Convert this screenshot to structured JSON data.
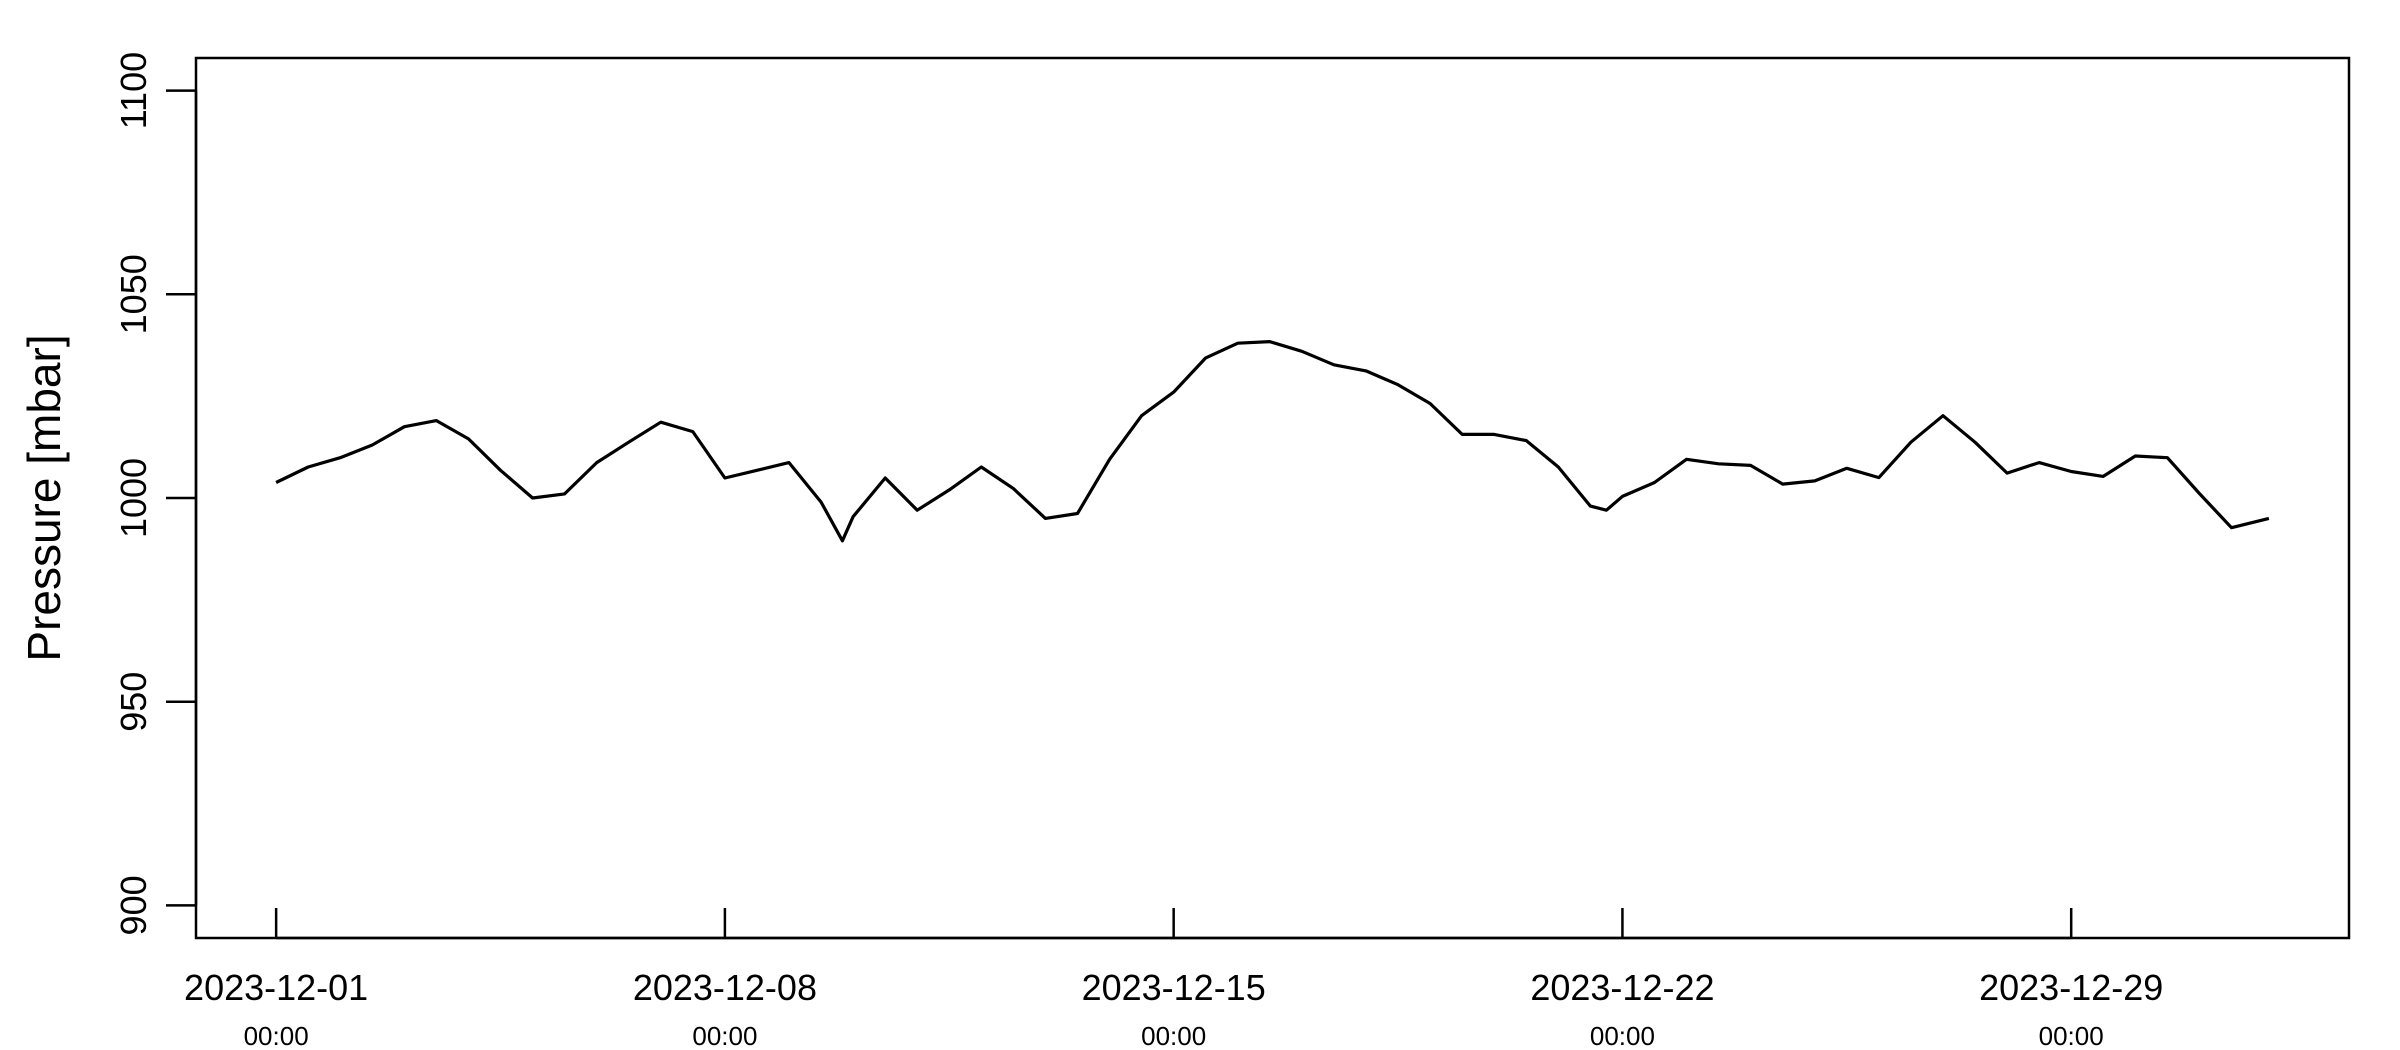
{
  "chart_data": {
    "type": "line",
    "y_label": "Pressure [mbar]",
    "color": "#000000",
    "xlim": [
      "2023-11-29 18:00",
      "2024-01-02 08:00"
    ],
    "ylim": [
      892,
      1108
    ],
    "yticks": [
      900,
      950,
      1000,
      1050,
      1100
    ],
    "xticks": [
      {
        "value": "2023-12-01 00:00",
        "label": [
          "2023-12-01",
          "00:00"
        ]
      },
      {
        "value": "2023-12-08 00:00",
        "label": [
          "2023-12-08",
          "00:00"
        ]
      },
      {
        "value": "2023-12-15 00:00",
        "label": [
          "2023-12-15",
          "00:00"
        ]
      },
      {
        "value": "2023-12-22 00:00",
        "label": [
          "2023-12-22",
          "00:00"
        ]
      },
      {
        "value": "2023-12-29 00:00",
        "label": [
          "2023-12-29",
          "00:00"
        ]
      }
    ],
    "x": [
      "2023-12-01 00:00",
      "2023-12-01 12:00",
      "2023-12-02 00:00",
      "2023-12-02 12:00",
      "2023-12-03 00:00",
      "2023-12-03 12:00",
      "2023-12-04 00:00",
      "2023-12-04 12:00",
      "2023-12-05 00:00",
      "2023-12-05 12:00",
      "2023-12-06 00:00",
      "2023-12-06 12:00",
      "2023-12-07 00:00",
      "2023-12-07 12:00",
      "2023-12-08 00:00",
      "2023-12-08 12:00",
      "2023-12-09 00:00",
      "2023-12-09 12:00",
      "2023-12-09 20:00",
      "2023-12-10 00:00",
      "2023-12-10 12:00",
      "2023-12-11 00:00",
      "2023-12-11 12:00",
      "2023-12-12 00:00",
      "2023-12-12 12:00",
      "2023-12-13 00:00",
      "2023-12-13 12:00",
      "2023-12-14 00:00",
      "2023-12-14 12:00",
      "2023-12-15 00:00",
      "2023-12-15 12:00",
      "2023-12-16 00:00",
      "2023-12-16 12:00",
      "2023-12-17 00:00",
      "2023-12-17 12:00",
      "2023-12-18 00:00",
      "2023-12-18 12:00",
      "2023-12-19 00:00",
      "2023-12-19 12:00",
      "2023-12-20 00:00",
      "2023-12-20 12:00",
      "2023-12-21 00:00",
      "2023-12-21 12:00",
      "2023-12-21 18:00",
      "2023-12-22 00:00",
      "2023-12-22 12:00",
      "2023-12-23 00:00",
      "2023-12-23 12:00",
      "2023-12-24 00:00",
      "2023-12-24 12:00",
      "2023-12-25 00:00",
      "2023-12-25 12:00",
      "2023-12-26 00:00",
      "2023-12-26 12:00",
      "2023-12-27 00:00",
      "2023-12-27 12:00",
      "2023-12-28 00:00",
      "2023-12-28 12:00",
      "2023-12-29 00:00",
      "2023-12-29 12:00",
      "2023-12-30 00:00",
      "2023-12-30 12:00",
      "2023-12-31 00:00",
      "2023-12-31 12:00",
      "2024-01-01 02:00"
    ],
    "values": [
      1003.8,
      1007.6,
      1009.9,
      1013,
      1017.5,
      1019,
      1014.5,
      1006.8,
      1000,
      1001,
      1008.7,
      1013.7,
      1018.6,
      1016.3,
      1004.9,
      1006.8,
      1008.7,
      999,
      989.5,
      995.4,
      1004.9,
      997,
      1002,
      1007.6,
      1002.3,
      995,
      996.2,
      1009.5,
      1020.2,
      1026,
      1034.4,
      1038,
      1038.4,
      1036,
      1032.7,
      1031.2,
      1027.8,
      1023.2,
      1015.6,
      1015.6,
      1014.1,
      1007.6,
      998,
      997,
      1000.4,
      1003.8,
      1009.5,
      1008.4,
      1008,
      1003.4,
      1004.2,
      1007.3,
      1005,
      1013.7,
      1020.2,
      1013.7,
      1006.1,
      1008.7,
      1006.5,
      1005.3,
      1010.3,
      1009.9,
      1001.1,
      992.7,
      995
    ]
  }
}
